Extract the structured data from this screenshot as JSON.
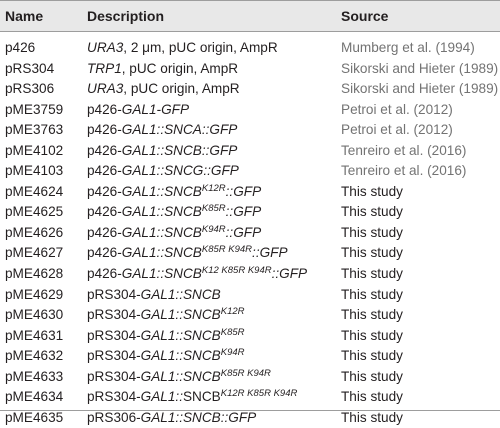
{
  "headers": {
    "name": "Name",
    "description": "Description",
    "source": "Source"
  },
  "rows": [
    {
      "name": "p426",
      "description": [
        {
          "t": "URA3",
          "i": true
        },
        {
          "t": ", 2 μm, pUC origin, AmpR"
        }
      ],
      "source": "Mumberg et al. (1994)",
      "source_is_reference": true
    },
    {
      "name": "pRS304",
      "description": [
        {
          "t": "TRP1",
          "i": true
        },
        {
          "t": ", pUC origin, AmpR"
        }
      ],
      "source": "Sikorski and Hieter (1989)",
      "source_is_reference": true
    },
    {
      "name": "pRS306",
      "description": [
        {
          "t": "URA3",
          "i": true
        },
        {
          "t": ", pUC origin, AmpR"
        }
      ],
      "source": "Sikorski and Hieter (1989)",
      "source_is_reference": true
    },
    {
      "name": "pME3759",
      "description": [
        {
          "t": "p426-"
        },
        {
          "t": "GAL1-GFP",
          "i": true
        }
      ],
      "source": "Petroi et al. (2012)",
      "source_is_reference": true
    },
    {
      "name": "pME3763",
      "description": [
        {
          "t": "p426-"
        },
        {
          "t": "GAL1::SNCA::GFP",
          "i": true
        }
      ],
      "source": "Petroi et al. (2012)",
      "source_is_reference": true
    },
    {
      "name": "pME4102",
      "description": [
        {
          "t": "p426-"
        },
        {
          "t": "GAL1::SNCB::GFP",
          "i": true
        }
      ],
      "source": "Tenreiro et al. (2016)",
      "source_is_reference": true
    },
    {
      "name": "pME4103",
      "description": [
        {
          "t": "p426-"
        },
        {
          "t": "GAL1::SNCG::GFP",
          "i": true
        }
      ],
      "source": "Tenreiro et al. (2016)",
      "source_is_reference": true
    },
    {
      "name": "pME4624",
      "description": [
        {
          "t": "p426-"
        },
        {
          "t": "GAL1::SNCB",
          "i": true
        },
        {
          "t": "K12R",
          "i": true,
          "sup": true
        },
        {
          "t": "::GFP",
          "i": true
        }
      ],
      "source": "This study",
      "source_is_reference": false
    },
    {
      "name": "pME4625",
      "description": [
        {
          "t": "p426-"
        },
        {
          "t": "GAL1::SNCB",
          "i": true
        },
        {
          "t": "K85R",
          "i": true,
          "sup": true
        },
        {
          "t": "::GFP",
          "i": true
        }
      ],
      "source": "This study",
      "source_is_reference": false
    },
    {
      "name": "pME4626",
      "description": [
        {
          "t": "p426-"
        },
        {
          "t": "GAL1::SNCB",
          "i": true
        },
        {
          "t": "K94R",
          "i": true,
          "sup": true
        },
        {
          "t": "::GFP",
          "i": true
        }
      ],
      "source": "This study",
      "source_is_reference": false
    },
    {
      "name": "pME4627",
      "description": [
        {
          "t": "p426-"
        },
        {
          "t": "GAL1::SNCB",
          "i": true
        },
        {
          "t": "K85R K94R",
          "i": true,
          "sup": true
        },
        {
          "t": "::GFP",
          "i": true
        }
      ],
      "source": "This study",
      "source_is_reference": false
    },
    {
      "name": "pME4628",
      "description": [
        {
          "t": "p426-"
        },
        {
          "t": "GAL1::SNCB",
          "i": true
        },
        {
          "t": "K12 K85R K94R",
          "i": true,
          "sup": true
        },
        {
          "t": "::GFP",
          "i": true
        }
      ],
      "source": "This study",
      "source_is_reference": false
    },
    {
      "name": "pME4629",
      "description": [
        {
          "t": "pRS304-"
        },
        {
          "t": "GAL1::SNCB",
          "i": true
        }
      ],
      "source": "This study",
      "source_is_reference": false
    },
    {
      "name": "pME4630",
      "description": [
        {
          "t": "pRS304-"
        },
        {
          "t": "GAL1::SNCB",
          "i": true
        },
        {
          "t": "K12R",
          "i": true,
          "sup": true
        }
      ],
      "source": "This study",
      "source_is_reference": false
    },
    {
      "name": "pME4631",
      "description": [
        {
          "t": "pRS304-"
        },
        {
          "t": "GAL1::SNCB",
          "i": true
        },
        {
          "t": "K85R",
          "i": true,
          "sup": true
        }
      ],
      "source": "This study",
      "source_is_reference": false
    },
    {
      "name": "pME4632",
      "description": [
        {
          "t": "pRS304-"
        },
        {
          "t": "GAL1::SNCB",
          "i": true
        },
        {
          "t": "K94R",
          "i": true,
          "sup": true
        }
      ],
      "source": "This study",
      "source_is_reference": false
    },
    {
      "name": "pME4633",
      "description": [
        {
          "t": "pRS304-"
        },
        {
          "t": "GAL1::SNCB",
          "i": true
        },
        {
          "t": "K85R K94R",
          "i": true,
          "sup": true
        }
      ],
      "source": "This study",
      "source_is_reference": false
    },
    {
      "name": "pME4634",
      "description": [
        {
          "t": "pRS304-"
        },
        {
          "t": "GAL1::",
          "i": true
        },
        {
          "t": "SNCB"
        },
        {
          "t": "K12R K85R K94R",
          "i": true,
          "sup": true
        }
      ],
      "source": "This study",
      "source_is_reference": false
    },
    {
      "name": "pME4635",
      "description": [
        {
          "t": "pRS306-"
        },
        {
          "t": "GAL1::SNCB::GFP",
          "i": true
        }
      ],
      "source": "This study",
      "source_is_reference": false
    }
  ]
}
